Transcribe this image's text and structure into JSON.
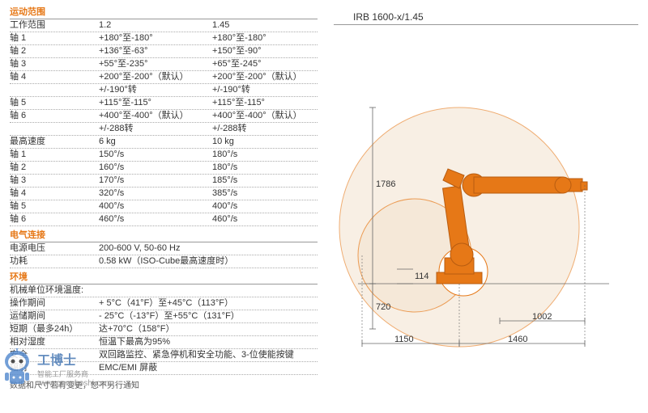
{
  "sections": {
    "motion": {
      "header": "运动范围"
    },
    "elec": {
      "header": "电气连接"
    },
    "env": {
      "header": "环境"
    }
  },
  "cols": {
    "h1": "工作范围",
    "h2": "1.2",
    "h3": "1.45"
  },
  "motion_rows": [
    {
      "l": "轴 1",
      "a": "+180°至-180°",
      "b": "+180°至-180°"
    },
    {
      "l": "轴 2",
      "a": "+136°至-63°",
      "b": "+150°至-90°"
    },
    {
      "l": "轴 3",
      "a": "+55°至-235°",
      "b": "+65°至-245°"
    },
    {
      "l": "轴 4",
      "a": "+200°至-200°（默认）",
      "b": "+200°至-200°（默认）"
    },
    {
      "l": "",
      "a": "+/-190°转",
      "b": "+/-190°转"
    },
    {
      "l": "轴 5",
      "a": "+115°至-115°",
      "b": "+115°至-115°"
    },
    {
      "l": "轴 6",
      "a": "+400°至-400°（默认）",
      "b": "+400°至-400°（默认）"
    },
    {
      "l": "",
      "a": "+/-288转",
      "b": "+/-288转"
    },
    {
      "l": "最高速度",
      "a": "6 kg",
      "b": "10 kg"
    },
    {
      "l": "轴 1",
      "a": "150°/s",
      "b": "180°/s"
    },
    {
      "l": "轴 2",
      "a": "160°/s",
      "b": "180°/s"
    },
    {
      "l": "轴 3",
      "a": "170°/s",
      "b": "185°/s"
    },
    {
      "l": "轴 4",
      "a": "320°/s",
      "b": "385°/s"
    },
    {
      "l": "轴 5",
      "a": "400°/s",
      "b": "400°/s"
    },
    {
      "l": "轴 6",
      "a": "460°/s",
      "b": "460°/s"
    }
  ],
  "elec_rows": [
    {
      "l": "电源电压",
      "v": "200-600 V, 50-60 Hz"
    },
    {
      "l": "功耗",
      "v": "0.58 kW（ISO-Cube最高速度时）"
    }
  ],
  "env_rows": [
    {
      "l": "机械单位环境温度:",
      "v": ""
    },
    {
      "l": "操作期间",
      "v": "+ 5°C（41°F）至+45°C（113°F）"
    },
    {
      "l": "运储期间",
      "v": "- 25°C（-13°F）至+55°C（131°F）"
    },
    {
      "l": "短期（最多24h）",
      "v": "达+70°C（158°F）"
    },
    {
      "l": "相对湿度",
      "v": "恒温下最高为95%"
    },
    {
      "l": "安全",
      "v": "双回路监控、紧急停机和安全功能、3-位使能按键"
    },
    {
      "l": "辐射",
      "v": "EMC/EMI 屏蔽"
    }
  ],
  "footnote": "数据和尺寸若有变更，恕不另行通知",
  "model": "IRB 1600-x/1.45",
  "diagram": {
    "dims": {
      "h_outer": "1786",
      "h_base": "720",
      "h_gap": "114",
      "w_left": "1150",
      "w_right": "1460",
      "w_small": "1002"
    },
    "colors": {
      "robot_fill": "#e67817",
      "robot_stroke": "#b85c10",
      "env_fill": "#f5e6d3",
      "env_stroke": "#e67817",
      "dim_line": "#666666",
      "bg": "#ffffff"
    },
    "stroke_widths": {
      "env": 1,
      "robot": 1.5,
      "dim": 0.8
    }
  },
  "watermark": {
    "title": "工博士",
    "subtitle": "智能工厂服务商",
    "url": "www.gongboshi.com",
    "robot_color": "#5b8fd1",
    "face_color": "#ffffff"
  }
}
